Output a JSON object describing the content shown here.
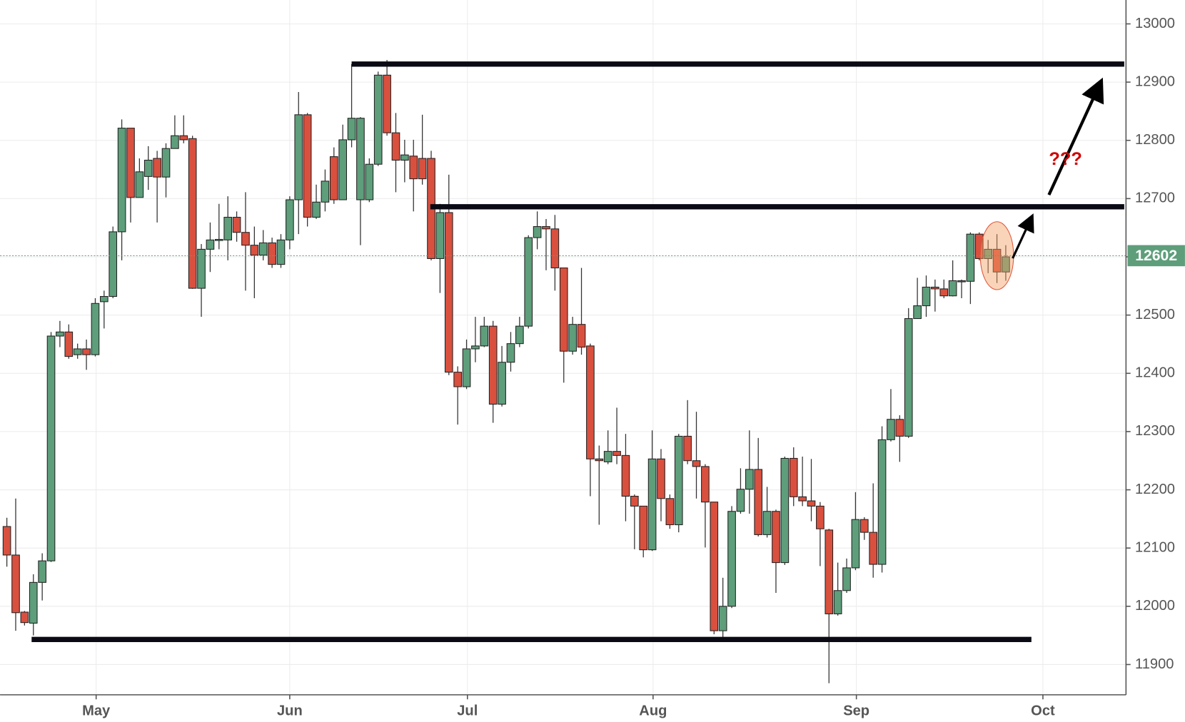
{
  "chart_data": {
    "type": "candlestick",
    "categories": [
      null,
      null,
      null,
      null,
      null,
      null,
      null,
      null,
      null,
      null,
      null,
      null,
      null,
      null,
      null,
      null,
      null,
      null,
      null,
      null,
      null,
      null,
      null,
      null,
      null,
      null,
      null,
      null,
      null,
      null,
      null,
      null,
      null,
      null,
      null,
      null,
      null,
      null,
      null,
      null,
      null,
      null,
      null,
      null,
      null,
      null,
      null,
      null,
      null,
      null,
      null,
      null,
      null,
      null,
      null,
      null,
      null,
      null,
      null,
      null,
      null,
      null,
      null,
      null,
      null,
      null,
      null,
      null,
      null,
      null,
      null,
      null,
      null,
      null,
      null,
      null,
      null,
      null,
      null,
      null,
      null,
      null,
      null,
      null,
      null,
      null,
      null,
      null,
      null,
      null,
      null,
      null,
      null,
      null,
      null,
      null,
      null,
      null,
      null,
      null,
      null,
      null,
      null,
      null,
      null,
      null,
      null,
      null,
      null,
      null,
      null,
      null,
      null,
      null
    ],
    "open": [
      12137,
      12088,
      11990,
      11971,
      12041,
      12078,
      12464,
      12471,
      12432,
      12442,
      12432,
      12523,
      12532,
      12643,
      12821,
      12702,
      12738,
      12769,
      12737,
      12786,
      12808,
      12803,
      12546,
      12613,
      12628,
      12629,
      12668,
      12642,
      12620,
      12603,
      12624,
      12587,
      12629,
      12698,
      12844,
      12668,
      12694,
      12772,
      12698,
      12801,
      12698,
      12698,
      12759,
      12912,
      12813,
      12766,
      12773,
      12769,
      12769,
      12597,
      12676,
      12402,
      12377,
      12442,
      12447,
      12481,
      12347,
      12419,
      12451,
      12481,
      12633,
      12652,
      12648,
      12581,
      12438,
      12484,
      12447,
      12253,
      12248,
      12266,
      12259,
      12189,
      12172,
      12097,
      12253,
      12185,
      12140,
      12292,
      12250,
      12240,
      12179,
      11958,
      12000,
      12163,
      12201,
      12235,
      12123,
      12163,
      12075,
      12254,
      12188,
      12181,
      12172,
      12131,
      11987,
      12027,
      12066,
      12149,
      12127,
      12072,
      12286,
      12321,
      12292,
      12494,
      12516,
      12548,
      12545,
      12533,
      12559,
      12558,
      12639,
      12597,
      12613,
      12574
    ],
    "high": [
      12152,
      12185,
      11992,
      12055,
      12091,
      12471,
      12490,
      12484,
      12451,
      12458,
      12529,
      12542,
      12652,
      12836,
      12821,
      12769,
      12790,
      12782,
      12795,
      12843,
      12843,
      12808,
      12622,
      12659,
      12691,
      12704,
      12678,
      12711,
      12652,
      12646,
      12633,
      12639,
      12704,
      12883,
      12847,
      12724,
      12750,
      12788,
      12827,
      12931,
      12840,
      12769,
      12918,
      12938,
      12847,
      12801,
      12801,
      12844,
      12782,
      12691,
      12741,
      12412,
      12458,
      12497,
      12497,
      12490,
      12447,
      12471,
      12497,
      12637,
      12678,
      12665,
      12672,
      12581,
      12497,
      12581,
      12451,
      12276,
      12302,
      12341,
      12296,
      12192,
      12172,
      12302,
      12270,
      12192,
      12296,
      12354,
      12334,
      12244,
      12179,
      12049,
      12172,
      12237,
      12302,
      12289,
      12205,
      12166,
      12257,
      12273,
      12257,
      12253,
      12179,
      12133,
      12075,
      12082,
      12196,
      12153,
      12211,
      12309,
      12373,
      12328,
      12512,
      12564,
      12568,
      12561,
      12561,
      12594,
      12561,
      12642,
      12642,
      12629,
      12639,
      12620
    ],
    "low": [
      12068,
      11958,
      11967,
      11950,
      12010,
      12076,
      12445,
      12425,
      12425,
      12406,
      12429,
      12477,
      12529,
      12594,
      12659,
      12702,
      12715,
      12659,
      12702,
      12788,
      12795,
      12545,
      12497,
      12574,
      12613,
      12594,
      12626,
      12542,
      12529,
      12594,
      12581,
      12581,
      12613,
      12639,
      12652,
      12665,
      12678,
      12691,
      12698,
      12788,
      12620,
      12694,
      12756,
      12808,
      12711,
      12728,
      12678,
      12724,
      12594,
      12538,
      12397,
      12312,
      12373,
      12419,
      12445,
      12315,
      12343,
      12403,
      12445,
      12477,
      12613,
      12577,
      12542,
      12384,
      12432,
      12432,
      12189,
      12140,
      12244,
      12244,
      12146,
      12098,
      12084,
      12095,
      12146,
      12133,
      12127,
      12244,
      12185,
      12101,
      11952,
      11939,
      11997,
      12159,
      12159,
      12120,
      12118,
      12023,
      12071,
      12172,
      12172,
      12146,
      12069,
      11868,
      11984,
      12023,
      12062,
      12114,
      12049,
      12058,
      12283,
      12248,
      12289,
      12494,
      12497,
      12506,
      12529,
      12532,
      12529,
      12519,
      12594,
      12572,
      12555,
      12559
    ],
    "close": [
      12088,
      11989,
      11972,
      12041,
      12078,
      12464,
      12471,
      12429,
      12442,
      12432,
      12520,
      12532,
      12643,
      12821,
      12702,
      12746,
      12766,
      12737,
      12786,
      12808,
      12801,
      12546,
      12613,
      12629,
      12630,
      12668,
      12642,
      12620,
      12603,
      12624,
      12587,
      12629,
      12698,
      12844,
      12668,
      12694,
      12730,
      12698,
      12801,
      12838,
      12838,
      12759,
      12912,
      12813,
      12766,
      12775,
      12734,
      12734,
      12597,
      12676,
      12402,
      12377,
      12442,
      12447,
      12481,
      12347,
      12419,
      12451,
      12481,
      12633,
      12652,
      12648,
      12581,
      12438,
      12484,
      12445,
      12253,
      12250,
      12266,
      12259,
      12189,
      12172,
      12097,
      12253,
      12185,
      12140,
      12292,
      12250,
      12240,
      12179,
      11958,
      12000,
      12163,
      12201,
      12235,
      12123,
      12163,
      12075,
      12254,
      12188,
      12181,
      12172,
      12133,
      11987,
      12027,
      12066,
      12149,
      12127,
      12072,
      12286,
      12321,
      12292,
      12494,
      12516,
      12548,
      12545,
      12533,
      12559,
      12558,
      12639,
      12597,
      12613,
      12574,
      12600
    ],
    "up_color": "#5e9e7b",
    "down_color": "#d9503f",
    "xlim": [
      -0.77,
      126.6
    ],
    "xticks": [
      {
        "value": 10.1,
        "label": "May"
      },
      {
        "value": 32.0,
        "label": "Jun"
      },
      {
        "value": 52.1,
        "label": "Jul"
      },
      {
        "value": 73.1,
        "label": "Aug"
      },
      {
        "value": 96.1,
        "label": "Sep"
      },
      {
        "value": 117.2,
        "label": "Oct"
      }
    ],
    "ylim": [
      11848,
      13041
    ],
    "yticks": [
      11900,
      12000,
      12100,
      12200,
      12300,
      12400,
      12500,
      12600,
      12700,
      12800,
      12900,
      13000
    ],
    "grid": true,
    "last_price": 12602,
    "last_price_color": "#5e9e7b",
    "levels": [
      12931,
      12686,
      11943
    ],
    "annotation": "???"
  }
}
